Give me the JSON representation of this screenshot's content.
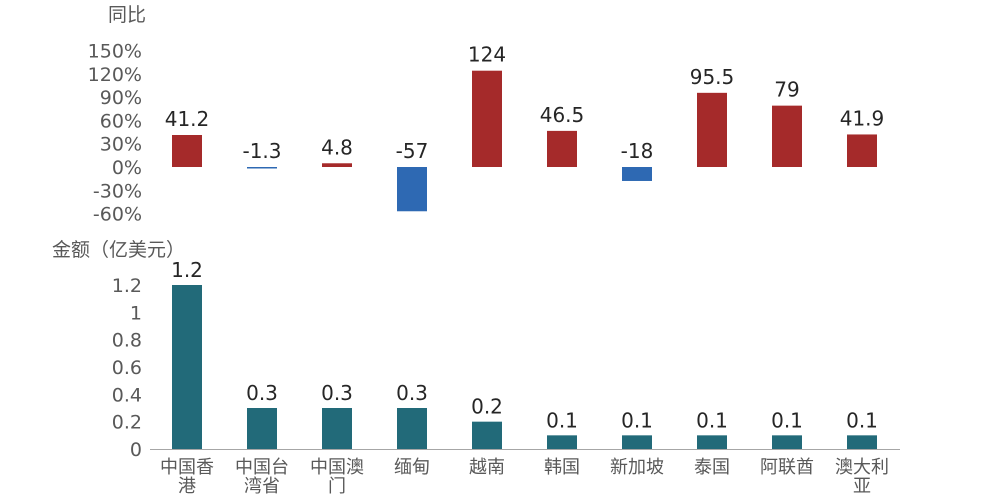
{
  "chart_data": [
    {
      "type": "bar",
      "ylabel": "同比",
      "categories": [
        "中国香港",
        "中国台湾省",
        "中国澳门",
        "缅甸",
        "越南",
        "韩国",
        "新加坡",
        "泰国",
        "阿联酋",
        "澳大利亚"
      ],
      "values": [
        41.2,
        -1.3,
        4.8,
        -57,
        124,
        46.5,
        -18,
        95.5,
        79,
        41.9
      ],
      "value_labels": [
        "41.2",
        "-1.3",
        "4.8",
        "-57",
        "124",
        "46.5",
        "-18",
        "95.5",
        "79",
        "41.9"
      ],
      "yticks": [
        "150%",
        "120%",
        "90%",
        "60%",
        "30%",
        "0%",
        "-30%",
        "-60%"
      ],
      "ylim": [
        -60,
        150
      ],
      "colors": {
        "positive": "#A52A2A",
        "negative": "#2E69B3"
      }
    },
    {
      "type": "bar",
      "ylabel": "金额（亿美元）",
      "categories": [
        "中国香港",
        "中国台湾省",
        "中国澳门",
        "缅甸",
        "越南",
        "韩国",
        "新加坡",
        "泰国",
        "阿联酋",
        "澳大利亚"
      ],
      "category_lines": [
        [
          "中国香",
          "港"
        ],
        [
          "中国台",
          "湾省"
        ],
        [
          "中国澳",
          "门"
        ],
        [
          "缅甸"
        ],
        [
          "越南"
        ],
        [
          "韩国"
        ],
        [
          "新加坡"
        ],
        [
          "泰国"
        ],
        [
          "阿联酋"
        ],
        [
          "澳大利",
          "亚"
        ]
      ],
      "values": [
        1.2,
        0.3,
        0.3,
        0.3,
        0.2,
        0.1,
        0.1,
        0.1,
        0.1,
        0.1
      ],
      "value_labels": [
        "1.2",
        "0.3",
        "0.3",
        "0.3",
        "0.2",
        "0.1",
        "0.1",
        "0.1",
        "0.1",
        "0.1"
      ],
      "yticks": [
        "1.2",
        "1",
        "0.8",
        "0.6",
        "0.4",
        "0.2",
        "0"
      ],
      "ylim": [
        0,
        1.2
      ],
      "colors": {
        "bar": "#226A79",
        "axis": "#A6A6A6"
      }
    }
  ]
}
